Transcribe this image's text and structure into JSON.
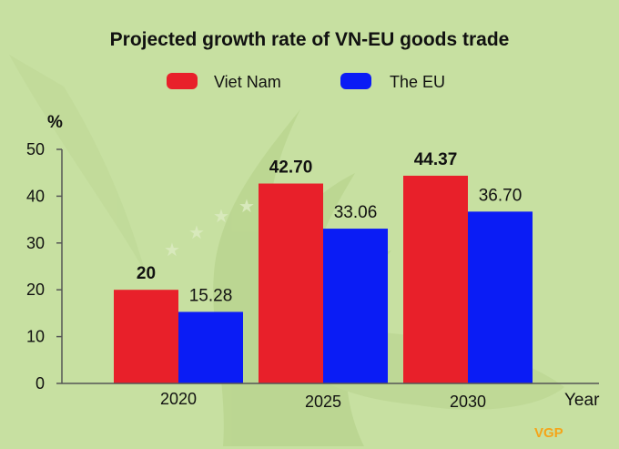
{
  "chart_data": {
    "type": "bar",
    "title": "Projected growth rate of VN-EU goods trade",
    "ylabel": "%",
    "xlabel": "Year",
    "ylim": [
      0,
      50
    ],
    "yticks": [
      "0",
      "10",
      "20",
      "30",
      "40",
      "50"
    ],
    "categories": [
      "2020",
      "2025",
      "2030"
    ],
    "series": [
      {
        "name": "Viet Nam",
        "color": "#e8202a",
        "values": [
          20,
          42.7,
          44.37
        ],
        "labels": [
          "20",
          "42.70",
          "44.37"
        ]
      },
      {
        "name": "The EU",
        "color": "#0a1cf5",
        "values": [
          15.28,
          33.06,
          36.7
        ],
        "labels": [
          "15.28",
          "33.06",
          "36.70"
        ]
      }
    ],
    "legend_position": "top-center",
    "grid": false
  },
  "logo_text": "VGP",
  "colors": {
    "background": "#c7e0a1",
    "watermark": "#b2cf86"
  }
}
